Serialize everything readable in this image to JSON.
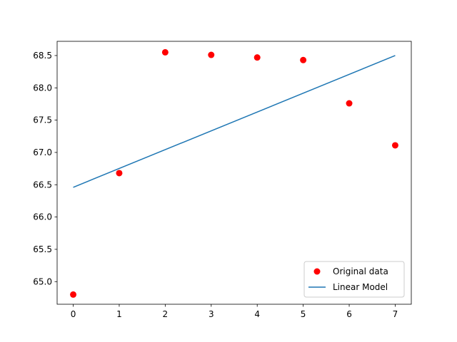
{
  "chart_data": {
    "type": "line",
    "title": "",
    "xlabel": "",
    "ylabel": "",
    "xlim": [
      -0.35,
      7.35
    ],
    "ylim": [
      64.65,
      68.72
    ],
    "grid": false,
    "legend_position": "lower-right",
    "x_ticks": [
      0,
      1,
      2,
      3,
      4,
      5,
      6,
      7
    ],
    "x_tick_labels": [
      "0",
      "1",
      "2",
      "3",
      "4",
      "5",
      "6",
      "7"
    ],
    "y_ticks": [
      65.0,
      65.5,
      66.0,
      66.5,
      67.0,
      67.5,
      68.0,
      68.5
    ],
    "y_tick_labels": [
      "65.0",
      "65.5",
      "66.0",
      "66.5",
      "67.0",
      "67.5",
      "68.0",
      "68.5"
    ],
    "series": [
      {
        "name": "Original data",
        "kind": "scatter",
        "color": "#ff0000",
        "x": [
          0,
          1,
          2,
          3,
          4,
          5,
          6,
          7
        ],
        "y": [
          64.8,
          66.68,
          68.55,
          68.51,
          68.47,
          68.43,
          67.76,
          67.11
        ]
      },
      {
        "name": "Linear Model",
        "kind": "line",
        "color": "#1f77b4",
        "x": [
          0,
          7
        ],
        "y": [
          66.46,
          68.5
        ]
      }
    ]
  }
}
